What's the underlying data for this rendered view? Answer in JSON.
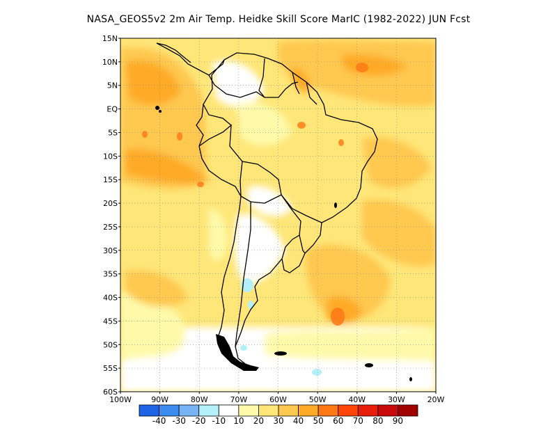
{
  "title": "NASA_GEOS5v2  2m Air Temp. Heidke Skill Score MarIC (1982-2022) JUN Fcst",
  "map": {
    "lat_labels": [
      "15N",
      "10N",
      "5N",
      "EQ",
      "5S",
      "10S",
      "15S",
      "20S",
      "25S",
      "30S",
      "35S",
      "40S",
      "45S",
      "50S",
      "55S",
      "60S"
    ],
    "lon_labels": [
      "100W",
      "90W",
      "80W",
      "70W",
      "60W",
      "50W",
      "40W",
      "30W",
      "20W"
    ],
    "lon_range": [
      -100,
      -20
    ],
    "lat_range": [
      -60,
      15
    ],
    "gridlines": "dotted"
  },
  "legend": {
    "colors": [
      "#1e64e6",
      "#3c8cf0",
      "#78b4f5",
      "#b4f0fa",
      "#ffffff",
      "#fffaaa",
      "#ffe678",
      "#ffc850",
      "#ffaa28",
      "#ff7814",
      "#ff460a",
      "#e61e0a",
      "#c80a0a",
      "#a00000"
    ],
    "tick_labels": [
      "-40",
      "-30",
      "-20",
      "-10",
      "10",
      "20",
      "30",
      "40",
      "50",
      "60",
      "70",
      "80",
      "90"
    ]
  }
}
